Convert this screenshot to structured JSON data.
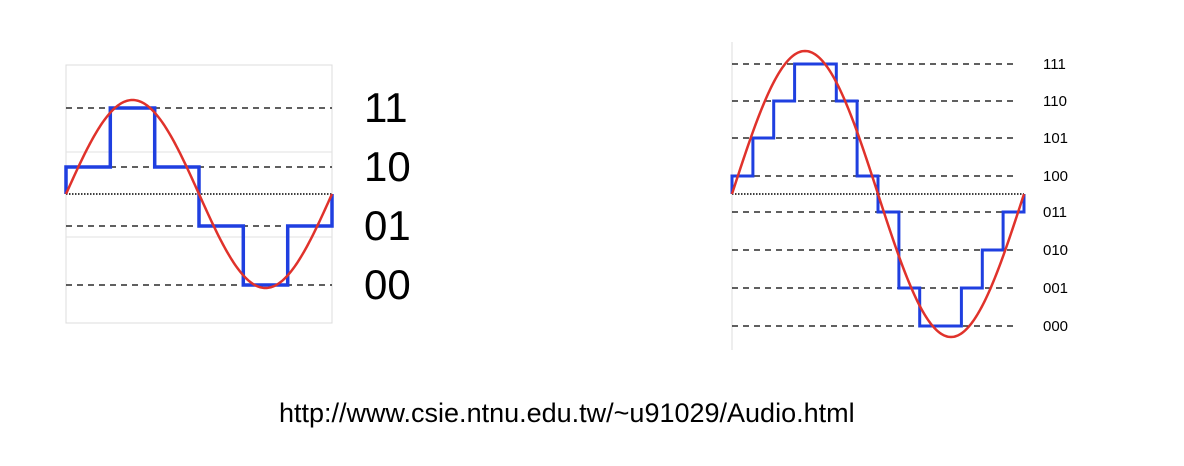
{
  "diagrams": [
    {
      "bits": 2,
      "levels": [
        "11",
        "10",
        "01",
        "00"
      ],
      "samples_per_cycle": 6,
      "sample_codes": [
        "10",
        "11",
        "10",
        "01",
        "00",
        "01"
      ]
    },
    {
      "bits": 3,
      "levels": [
        "111",
        "110",
        "101",
        "100",
        "011",
        "010",
        "001",
        "000"
      ],
      "samples_per_cycle": 14,
      "sample_codes": [
        "100",
        "101",
        "110",
        "111",
        "111",
        "110",
        "100",
        "011",
        "001",
        "000",
        "000",
        "001",
        "010",
        "011"
      ]
    }
  ],
  "colors": {
    "sine_wave": "#e0322b",
    "quantized_signal": "#1f3fe0",
    "level_lines": "#000000",
    "grid": "#d8d8d8"
  },
  "source_url": "http://www.csie.ntnu.edu.tw/~u91029/Audio.html"
}
